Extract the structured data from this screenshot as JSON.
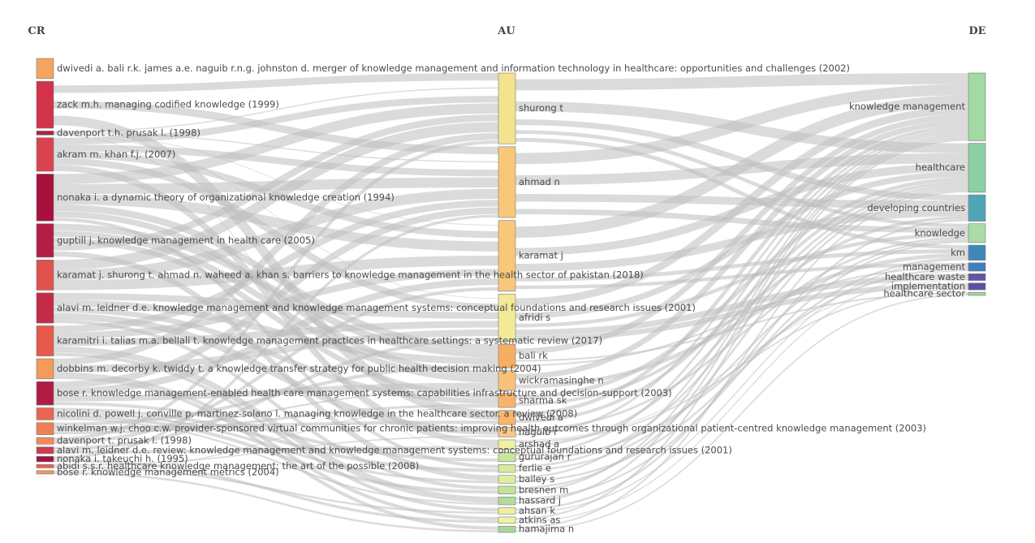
{
  "chart_data": {
    "type": "sankey",
    "columns": [
      {
        "title": "CR",
        "nodes": [
          {
            "label": "dwivedi a. bali r.k. james a.e. naguib r.n.g. johnston d. merger of knowledge management and information technology in healthcare: opportunities and challenges (2002)",
            "value": 3,
            "color": "#f4a460"
          },
          {
            "label": "zack m.h. managing codified knowledge (1999)",
            "value": 7,
            "color": "#d2334a"
          },
          {
            "label": "davenport t.h. prusak l. (1998)",
            "value": 0.6,
            "color": "#b3204a"
          },
          {
            "label": "akram m. khan f.j. (2007)",
            "value": 5,
            "color": "#d9434d"
          },
          {
            "label": "nonaka i. a dynamic theory of organizational knowledge creation (1994)",
            "value": 7,
            "color": "#a8103e"
          },
          {
            "label": "guptill j. knowledge management in health care (2005)",
            "value": 5,
            "color": "#b31d46"
          },
          {
            "label": "karamat j. shurong t. ahmad n. waheed a. khan s. barriers to knowledge management in the health sector of pakistan (2018)",
            "value": 4.5,
            "color": "#e0524c"
          },
          {
            "label": "alavi m. leidner d.e. knowledge management and knowledge management systems: conceptual foundations and research issues (2001)",
            "value": 4.5,
            "color": "#c42a4a"
          },
          {
            "label": "karamitri i. talias m.a. bellali t. knowledge management practices in healthcare settings: a systematic review (2017)",
            "value": 4.5,
            "color": "#e55a4a"
          },
          {
            "label": "dobbins m. decorby k. twiddy t. a knowledge transfer strategy for public health decision making (2004)",
            "value": 3,
            "color": "#f39a5c"
          },
          {
            "label": "bose r. knowledge management-enabled health care management systems: capabilities infrastructure and decision-support (2003)",
            "value": 3.5,
            "color": "#b01c44"
          },
          {
            "label": "nicolini d. powell j. conville p. martinez-solano l. managing knowledge in the healthcare sector. a review (2008)",
            "value": 1.8,
            "color": "#ea6650"
          },
          {
            "label": "winkelman w.j. choo c.w. provider-sponsored virtual communities for chronic patients: improving health outcomes through organizational patient-centred knowledge management (2003)",
            "value": 1.8,
            "color": "#ef7f55"
          },
          {
            "label": "davenport t. prusak l. (1998)",
            "value": 1,
            "color": "#f08a58"
          },
          {
            "label": "alavi m. leidner d.e. review: knowledge management and knowledge management systems: conceptual foundations and research issues (2001)",
            "value": 1,
            "color": "#d03a4c"
          },
          {
            "label": "nonaka i. takeuchi h. (1995)",
            "value": 0.8,
            "color": "#a3103e"
          },
          {
            "label": "abidi s.s.r. healthcare knowledge management: the art of the possible (2008)",
            "value": 0.5,
            "color": "#e8624e"
          },
          {
            "label": "bose r. knowledge management metrics (2004)",
            "value": 0.5,
            "color": "#f39758"
          }
        ]
      },
      {
        "title": "AU",
        "nodes": [
          {
            "label": "shurong t",
            "value": 9,
            "color": "#f3e38e"
          },
          {
            "label": "ahmad n",
            "value": 9,
            "color": "#f8c77a"
          },
          {
            "label": "karamat j",
            "value": 9,
            "color": "#f8c77a"
          },
          {
            "label": "afridi s",
            "value": 6,
            "color": "#f3ea98"
          },
          {
            "label": "bali rk",
            "value": 3,
            "color": "#f7ae63"
          },
          {
            "label": "wickramasinghe n",
            "value": 2.5,
            "color": "#f9c27a"
          },
          {
            "label": "sharma sk",
            "value": 1.8,
            "color": "#f8b46a"
          },
          {
            "label": "dwivedi a",
            "value": 1.8,
            "color": "#f8b66a"
          },
          {
            "label": "naguib r",
            "value": 1.2,
            "color": "#f8c784"
          },
          {
            "label": "arshad a",
            "value": 1.2,
            "color": "#eef29f"
          },
          {
            "label": "gururajan r",
            "value": 1.2,
            "color": "#c9e79a"
          },
          {
            "label": "ferlie e",
            "value": 1,
            "color": "#d3eb9e"
          },
          {
            "label": "bailey s",
            "value": 1,
            "color": "#dcee9f"
          },
          {
            "label": "bresnen m",
            "value": 1,
            "color": "#c2e39a"
          },
          {
            "label": "hassard j",
            "value": 1,
            "color": "#b2dc9c"
          },
          {
            "label": "ahsan k",
            "value": 0.8,
            "color": "#f1ee9b"
          },
          {
            "label": "atkins as",
            "value": 0.8,
            "color": "#edf3a4"
          },
          {
            "label": "hamajima n",
            "value": 0.8,
            "color": "#a9d69c"
          }
        ]
      },
      {
        "title": "DE",
        "nodes": [
          {
            "label": "knowledge management",
            "value": 9,
            "color": "#a3d9a3"
          },
          {
            "label": "healthcare",
            "value": 6.5,
            "color": "#8ccfa3"
          },
          {
            "label": "developing countries",
            "value": 3.5,
            "color": "#4fa6b7"
          },
          {
            "label": "knowledge",
            "value": 2.5,
            "color": "#a9dca6"
          },
          {
            "label": "km",
            "value": 2,
            "color": "#3e87b8"
          },
          {
            "label": "management",
            "value": 1.1,
            "color": "#3f7fbd"
          },
          {
            "label": "healthcare waste",
            "value": 0.9,
            "color": "#5d57a6"
          },
          {
            "label": "implementation",
            "value": 0.9,
            "color": "#5e4fa2"
          },
          {
            "label": "healthcare sector",
            "value": 0.4,
            "color": "#a2d9a0"
          }
        ]
      }
    ],
    "links": [
      [
        0,
        1,
        0,
        1
      ],
      [
        0,
        1,
        1,
        1
      ],
      [
        0,
        1,
        7,
        1
      ],
      [
        0,
        2,
        0,
        2
      ],
      [
        0,
        2,
        1,
        2
      ],
      [
        0,
        2,
        2,
        1
      ],
      [
        0,
        2,
        3,
        1
      ],
      [
        0,
        2,
        10,
        1
      ],
      [
        0,
        3,
        0,
        1
      ],
      [
        0,
        3,
        1,
        1
      ],
      [
        0,
        3,
        2,
        1
      ],
      [
        0,
        3,
        3,
        1
      ],
      [
        0,
        3,
        9,
        1
      ],
      [
        0,
        4,
        0,
        1.5
      ],
      [
        0,
        4,
        1,
        1.5
      ],
      [
        0,
        4,
        2,
        1.5
      ],
      [
        0,
        4,
        4,
        1
      ],
      [
        0,
        4,
        5,
        1
      ],
      [
        0,
        4,
        11,
        0.5
      ],
      [
        0,
        5,
        4,
        1
      ],
      [
        0,
        5,
        5,
        1
      ],
      [
        0,
        5,
        6,
        1
      ],
      [
        0,
        5,
        0,
        1
      ],
      [
        0,
        5,
        12,
        1
      ],
      [
        0,
        6,
        0,
        1.5
      ],
      [
        0,
        6,
        1,
        1.5
      ],
      [
        0,
        6,
        2,
        1.5
      ],
      [
        0,
        7,
        3,
        1
      ],
      [
        0,
        7,
        4,
        1
      ],
      [
        0,
        7,
        6,
        1
      ],
      [
        0,
        7,
        8,
        1
      ],
      [
        0,
        7,
        13,
        0.5
      ],
      [
        0,
        8,
        1,
        1
      ],
      [
        0,
        8,
        2,
        1
      ],
      [
        0,
        8,
        3,
        1
      ],
      [
        0,
        8,
        14,
        1
      ],
      [
        0,
        8,
        15,
        0.5
      ],
      [
        0,
        9,
        0,
        1
      ],
      [
        0,
        9,
        3,
        1
      ],
      [
        0,
        9,
        16,
        0.5
      ],
      [
        0,
        9,
        17,
        0.5
      ],
      [
        0,
        10,
        1,
        1
      ],
      [
        0,
        10,
        2,
        1
      ],
      [
        0,
        10,
        5,
        1
      ],
      [
        0,
        10,
        10,
        0.5
      ],
      [
        0,
        11,
        11,
        0.5
      ],
      [
        0,
        11,
        12,
        0.5
      ],
      [
        0,
        11,
        13,
        0.5
      ],
      [
        0,
        11,
        14,
        0.3
      ],
      [
        0,
        12,
        4,
        0.5
      ],
      [
        0,
        12,
        7,
        0.5
      ],
      [
        0,
        12,
        5,
        0.3
      ],
      [
        0,
        12,
        6,
        0.5
      ],
      [
        0,
        13,
        0,
        0.5
      ],
      [
        0,
        13,
        2,
        0.5
      ],
      [
        0,
        14,
        3,
        0.5
      ],
      [
        0,
        14,
        9,
        0.5
      ],
      [
        0,
        15,
        1,
        0.4
      ],
      [
        0,
        15,
        16,
        0.4
      ],
      [
        0,
        16,
        8,
        0.2
      ],
      [
        0,
        16,
        15,
        0.3
      ],
      [
        0,
        17,
        6,
        0.2
      ],
      [
        0,
        17,
        17,
        0.3
      ],
      [
        1,
        0,
        0,
        3
      ],
      [
        1,
        0,
        1,
        2.5
      ],
      [
        1,
        0,
        2,
        1.5
      ],
      [
        1,
        0,
        3,
        1
      ],
      [
        1,
        0,
        4,
        1
      ],
      [
        1,
        1,
        0,
        3
      ],
      [
        1,
        1,
        1,
        2.5
      ],
      [
        1,
        1,
        2,
        2
      ],
      [
        1,
        1,
        3,
        1.5
      ],
      [
        1,
        2,
        0,
        3
      ],
      [
        1,
        2,
        1,
        2
      ],
      [
        1,
        2,
        2,
        2
      ],
      [
        1,
        2,
        4,
        1
      ],
      [
        1,
        2,
        5,
        1
      ],
      [
        1,
        3,
        0,
        2
      ],
      [
        1,
        3,
        1,
        1.5
      ],
      [
        1,
        3,
        3,
        1
      ],
      [
        1,
        3,
        6,
        0.8
      ],
      [
        1,
        3,
        7,
        0.7
      ],
      [
        1,
        4,
        0,
        1.5
      ],
      [
        1,
        4,
        8,
        0.5
      ],
      [
        1,
        4,
        5,
        0.5
      ],
      [
        1,
        5,
        0,
        1.5
      ],
      [
        1,
        5,
        4,
        1
      ],
      [
        1,
        6,
        1,
        1
      ],
      [
        1,
        6,
        2,
        0.8
      ],
      [
        1,
        7,
        0,
        1
      ],
      [
        1,
        7,
        1,
        0.8
      ],
      [
        1,
        8,
        3,
        0.6
      ],
      [
        1,
        8,
        0,
        0.6
      ],
      [
        1,
        9,
        6,
        0.1
      ],
      [
        1,
        9,
        7,
        0.2
      ],
      [
        1,
        9,
        1,
        0.6
      ],
      [
        1,
        10,
        0,
        0.6
      ],
      [
        1,
        10,
        5,
        0.6
      ],
      [
        1,
        11,
        1,
        0.5
      ],
      [
        1,
        11,
        3,
        0.5
      ],
      [
        1,
        12,
        0,
        0.5
      ],
      [
        1,
        12,
        4,
        0.5
      ],
      [
        1,
        13,
        1,
        0.5
      ],
      [
        1,
        13,
        0,
        0.5
      ],
      [
        1,
        14,
        3,
        0.5
      ],
      [
        1,
        14,
        0,
        0.5
      ],
      [
        1,
        15,
        2,
        0.5
      ],
      [
        1,
        15,
        4,
        0.3
      ],
      [
        1,
        16,
        0,
        0.5
      ],
      [
        1,
        16,
        5,
        0.3
      ],
      [
        1,
        17,
        1,
        0.4
      ],
      [
        1,
        17,
        8,
        0.4
      ]
    ]
  }
}
